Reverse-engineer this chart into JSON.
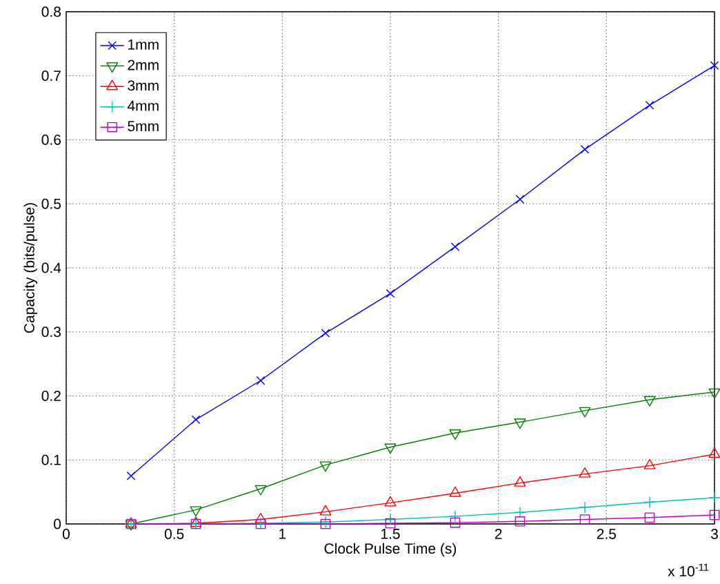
{
  "chart_data": {
    "type": "line",
    "xlabel": "Clock Pulse Time (s)",
    "ylabel": "Capacity (bits/pulse)",
    "annotations": [
      "x 10$^{-11}$"
    ],
    "x": [
      0.3,
      0.6,
      0.9,
      1.2,
      1.5,
      1.8,
      2.1,
      2.4,
      2.7,
      3.0
    ],
    "series": [
      {
        "name": "1mm",
        "color": "#0000ff",
        "marker": "cross",
        "values": [
          0.075,
          0.163,
          0.224,
          0.298,
          0.36,
          0.433,
          0.507,
          0.585,
          0.654,
          0.716
        ]
      },
      {
        "name": "2mm",
        "color": "#008000",
        "marker": "triangle_down",
        "values": [
          0.0,
          0.022,
          0.055,
          0.092,
          0.12,
          0.142,
          0.159,
          0.177,
          0.194,
          0.206
        ]
      },
      {
        "name": "3mm",
        "color": "#ff0000",
        "marker": "triangle",
        "values": [
          0.0,
          0.001,
          0.007,
          0.019,
          0.033,
          0.048,
          0.064,
          0.078,
          0.091,
          0.109
        ]
      },
      {
        "name": "4mm",
        "color": "#00bfbf",
        "marker": "plus",
        "values": [
          0.0,
          0.0,
          0.001,
          0.003,
          0.007,
          0.012,
          0.018,
          0.026,
          0.034,
          0.041
        ]
      },
      {
        "name": "5mm",
        "color": "#bf00bf",
        "marker": "square",
        "values": [
          0.0,
          0.0,
          0.0,
          0.0,
          0.001,
          0.002,
          0.004,
          0.007,
          0.01,
          0.014
        ]
      }
    ],
    "xlim": [
      0,
      3
    ],
    "xticks": [
      0,
      0.5,
      1,
      1.5,
      2,
      2.5,
      3
    ],
    "ylim": [
      0,
      0.8
    ],
    "yticks": [
      0,
      0.1,
      0.2,
      0.3,
      0.4,
      0.5,
      0.6,
      0.7,
      0.8
    ],
    "grid": true,
    "legend": "top left",
    "line_style": "solid"
  }
}
